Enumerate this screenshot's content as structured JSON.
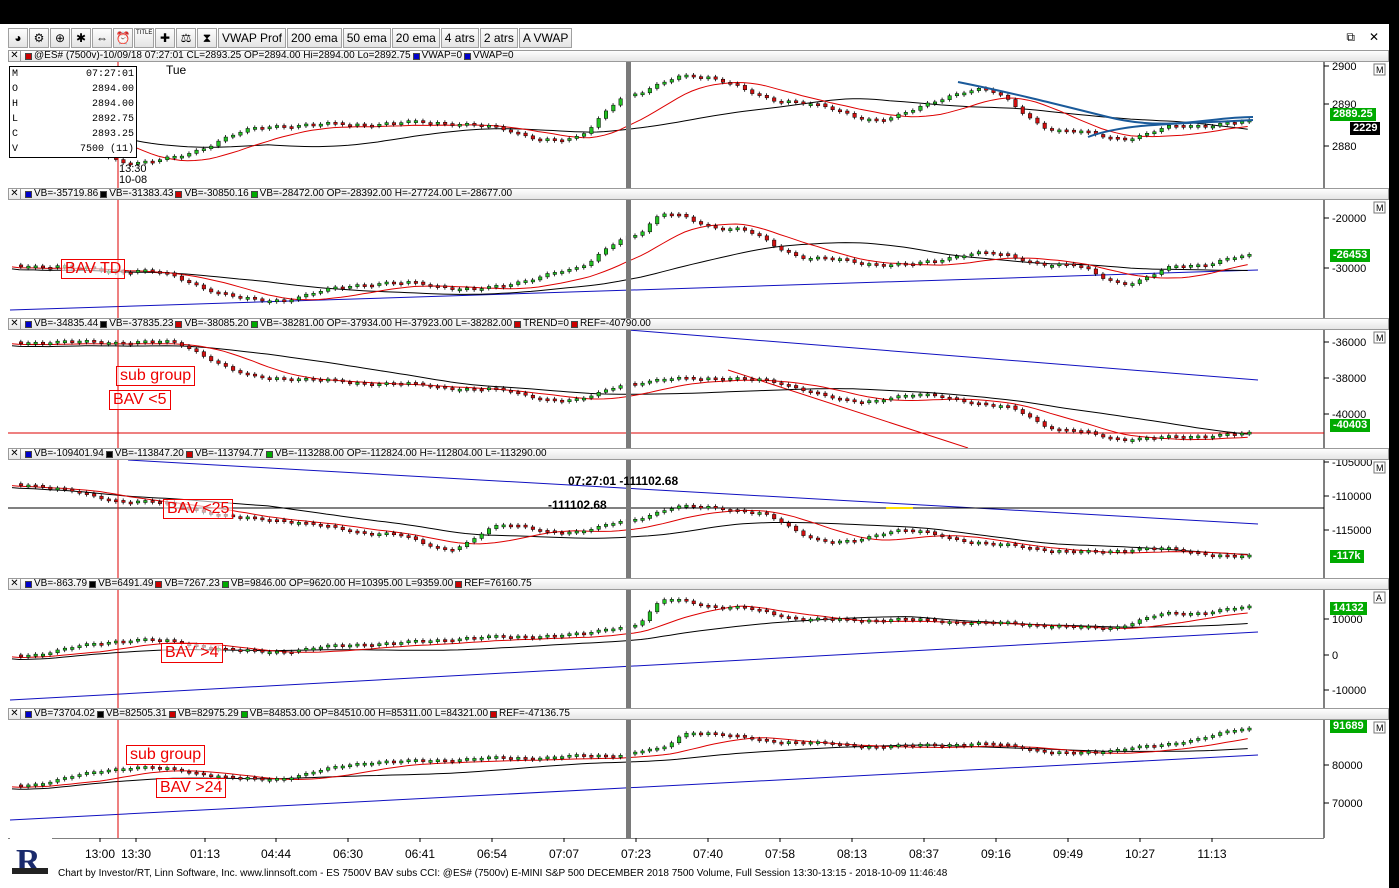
{
  "toolbar": {
    "icons": [
      "pie-icon",
      "settings-icon",
      "zoom-icon",
      "gear-icon",
      "scroll-icon",
      "alarm-icon",
      "title-icon",
      "tools-icon",
      "balance-icon",
      "hourglass-icon"
    ],
    "title_icon_text": "TITLE",
    "buttons": [
      "VWAP Prof",
      "200 ema",
      "50 ema",
      "20 ema",
      "4 atrs",
      "2 atrs",
      "A VWAP"
    ]
  },
  "window_controls": {
    "restore": "⧉",
    "close": "✕"
  },
  "panel1": {
    "header": "@ES# (7500v)-10/09/18 07:27:01 CL=2893.25 OP=2894.00 Hi=2894.00 Lo=2892.75 ",
    "vwap1": "VWAP=0",
    "vwap2": "VWAP=0",
    "ohlc": {
      "time": "07:27:01",
      "rows": [
        [
          "O",
          "2894.00"
        ],
        [
          "H",
          "2894.00"
        ],
        [
          "L",
          "2892.75"
        ],
        [
          "C",
          "2893.25"
        ],
        [
          "V",
          "7500 (11)"
        ]
      ],
      "first": "M"
    },
    "day": "Tue",
    "cursor_time": "13:30",
    "cursor_date": "10-08",
    "yticks": [
      "2900",
      "2890",
      "2880"
    ],
    "price_tag": "2889.25",
    "count_tag": "2229",
    "corner_m": "M"
  },
  "panel2": {
    "header_items": [
      "VB=-35719.86",
      "VB=-31383.43",
      "VB=-30850.16",
      "VB=-28472.00 OP=-28392.00 H=-27724.00 L=-28677.00"
    ],
    "colors": [
      "#0000cc",
      "#000000",
      "#cc0000",
      "#00aa00"
    ],
    "annotation": "BAV TD",
    "yticks": [
      "-20000",
      "-30000"
    ],
    "tag": "-26453",
    "corner_m": "M"
  },
  "panel3": {
    "header_items": [
      "VB=-34835.44",
      "VB=-37835.23",
      "VB=-38085.20",
      "VB=-38281.00 OP=-37934.00 H=-37923.00 L=-38282.00",
      "TREND=0",
      "REF=-40790.00"
    ],
    "colors": [
      "#0000cc",
      "#000000",
      "#cc0000",
      "#00aa00",
      "#cc0000",
      "#cc0000"
    ],
    "annotation1": "sub group",
    "annotation2": "BAV <5",
    "yticks": [
      "-36000",
      "-38000",
      "-40000"
    ],
    "tag": "-40403",
    "corner_m": "M"
  },
  "panel4": {
    "header_items": [
      "VB=-109401.94",
      "VB=-113847.20",
      "VB=-113794.77",
      "VB=-113288.00 OP=-112824.00 H=-112804.00 L=-113290.00"
    ],
    "colors": [
      "#0000cc",
      "#000000",
      "#cc0000",
      "#00aa00"
    ],
    "crosshair_time": "07:27:01",
    "crosshair_value": "-111102.68",
    "crosshair_value2": "-111102.68",
    "annotation": "BAV <25",
    "yticks": [
      "-105000",
      "-110000",
      "-115000"
    ],
    "tag": "-117k",
    "corner_m": "M"
  },
  "panel5": {
    "header_items": [
      "VB=-863.79",
      "VB=6491.49",
      "VB=7267.23",
      "VB=9846.00 OP=9620.00 H=10395.00 L=9359.00",
      "REF=76160.75"
    ],
    "colors": [
      "#0000cc",
      "#000000",
      "#cc0000",
      "#00aa00",
      "#cc0000"
    ],
    "annotation": "BAV >4",
    "yticks": [
      "10000",
      "0",
      "-10000"
    ],
    "tag": "14132",
    "corner_a": "A"
  },
  "panel6": {
    "header_items": [
      "VB=73704.02",
      "VB=82505.31",
      "VB=82975.29",
      "VB=84853.00 OP=84510.00 H=85311.00 L=84321.00",
      "REF=-47136.75"
    ],
    "colors": [
      "#0000cc",
      "#000000",
      "#cc0000",
      "#00aa00",
      "#cc0000"
    ],
    "annotation1": "sub group",
    "annotation2": "BAV >24",
    "yticks": [
      "80000",
      "70000"
    ],
    "tag": "91689",
    "corner_m": "M"
  },
  "xaxis": [
    "13:00",
    "13:30",
    "01:13",
    "04:44",
    "06:30",
    "06:41",
    "06:54",
    "07:07",
    "07:23",
    "07:40",
    "07:58",
    "08:13",
    "08:37",
    "09:16",
    "09:49",
    "10:27",
    "11:13"
  ],
  "footer": "Chart by Investor/RT, Linn Software, Inc. www.linnsoft.com - ES 7500V BAV subs CCI: @ES# (7500v) E-MINI S&P 500 DECEMBER 2018 7500 Volume, Full Session 13:30-13:15 - 2018-10-09 11:46:48"
}
